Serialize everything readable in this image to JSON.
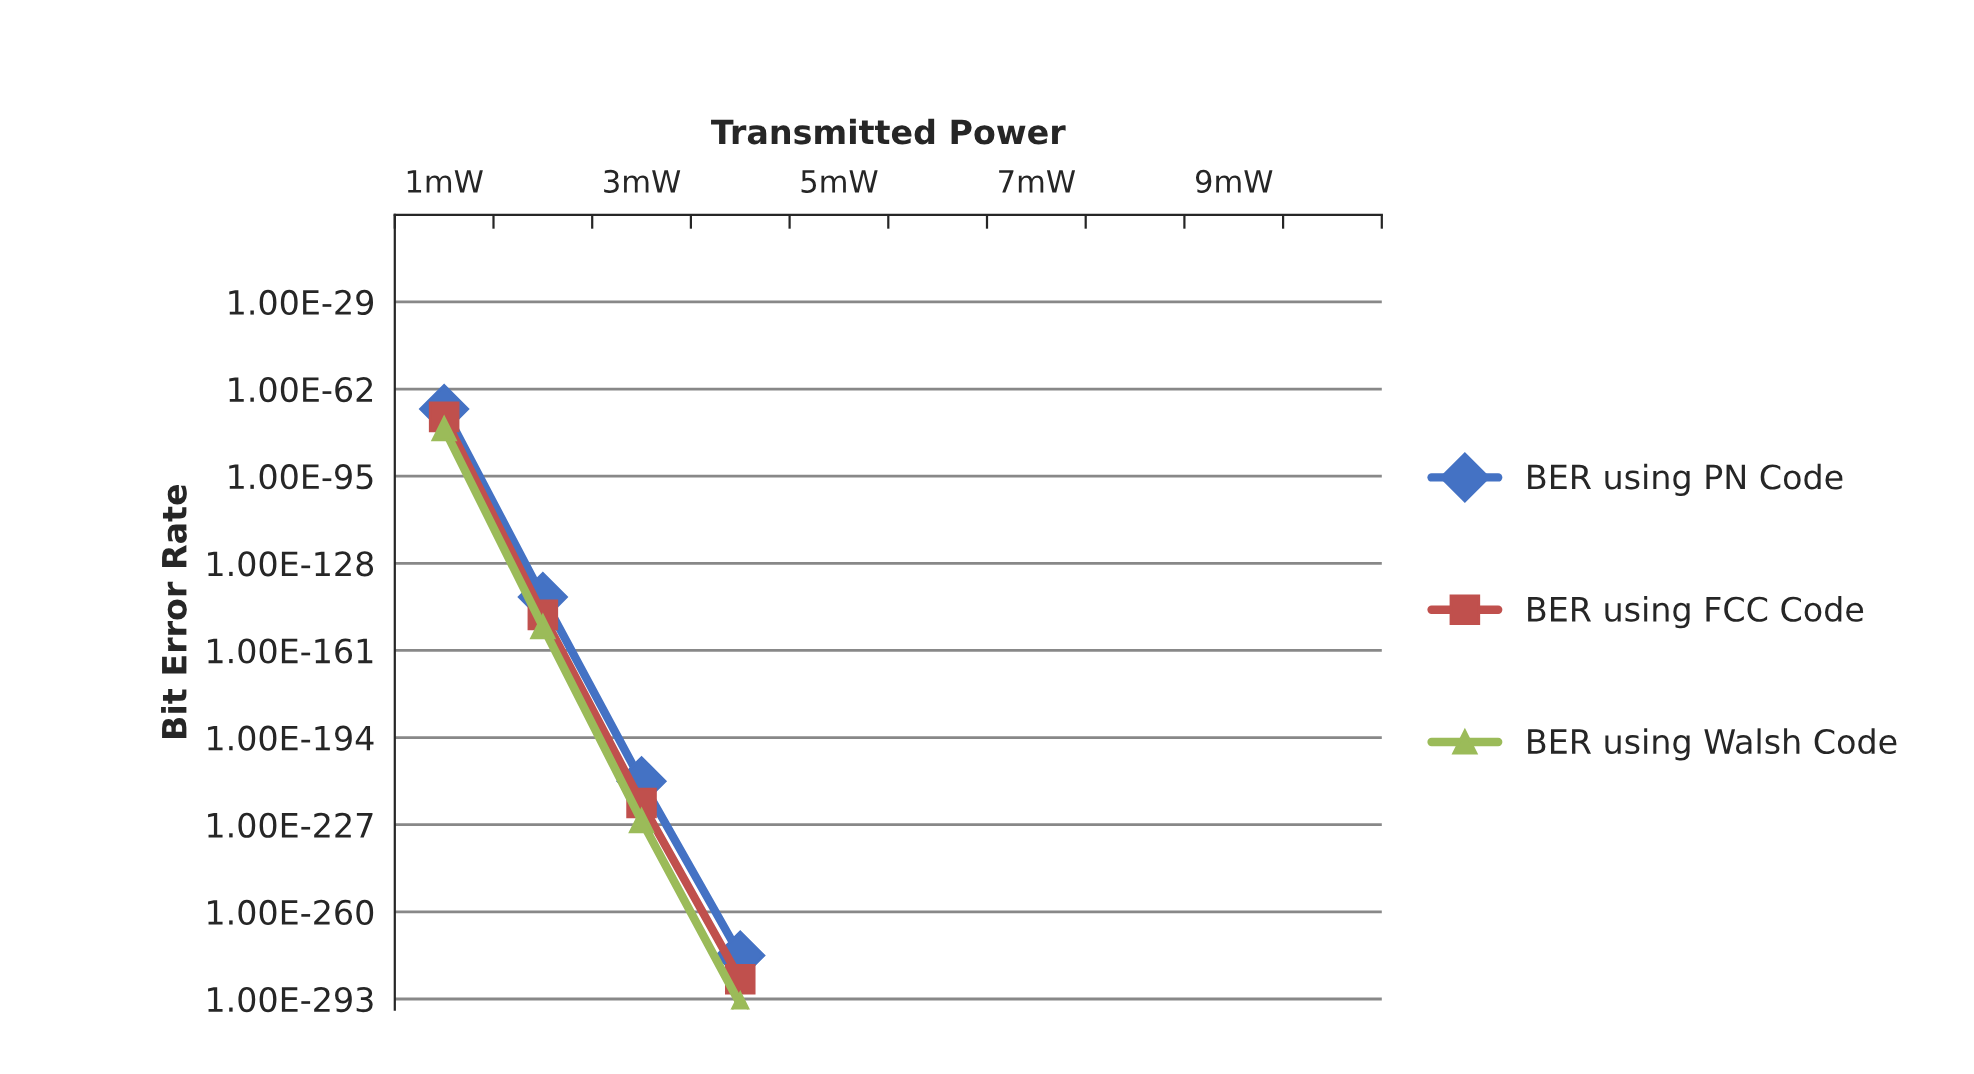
{
  "chart_data": {
    "type": "line",
    "xlabel": "Transmitted Power",
    "ylabel": "Bit Error Rate",
    "categories": [
      "1mW",
      null,
      "3mW",
      null,
      "5mW",
      null,
      "7mW",
      null,
      "9mW",
      null
    ],
    "series": [
      {
        "name": "BER using PN Code",
        "color": "#4472c4",
        "marker": "diamond",
        "values": [
          3e-70,
          1.6e-141,
          3e-211,
          3e-277,
          null,
          null,
          null,
          null,
          null,
          null
        ]
      },
      {
        "name": "BER using FCC Code",
        "color": "#c0504d",
        "marker": "square",
        "values": [
          3e-73,
          3e-148,
          1.8e-219,
          3e-286,
          null,
          null,
          null,
          null,
          null,
          null
        ]
      },
      {
        "name": "BER using Walsh Code",
        "color": "#9bbb59",
        "marker": "triangle",
        "values": [
          1e-77,
          1e-152,
          3e-226,
          1e-295,
          null,
          null,
          null,
          null,
          null,
          null
        ]
      }
    ],
    "log": "y",
    "ylim": [
      1e-297,
      10000.0
    ],
    "yticks": [
      {
        "value": 1e-29,
        "label": "1.00E-29"
      },
      {
        "value": 1e-62,
        "label": "1.00E-62"
      },
      {
        "value": 1e-95,
        "label": "1.00E-95"
      },
      {
        "value": 1e-128,
        "label": "1.00E-128"
      },
      {
        "value": 1e-161,
        "label": "1.00E-161"
      },
      {
        "value": 1e-194,
        "label": "1.00E-194"
      },
      {
        "value": 1e-227,
        "label": "1.00E-227"
      },
      {
        "value": 1e-260,
        "label": "1.00E-260"
      },
      {
        "value": 1e-293,
        "label": "1.00E-293"
      }
    ],
    "grid": "y",
    "legend": "right",
    "line_style": "solid"
  }
}
